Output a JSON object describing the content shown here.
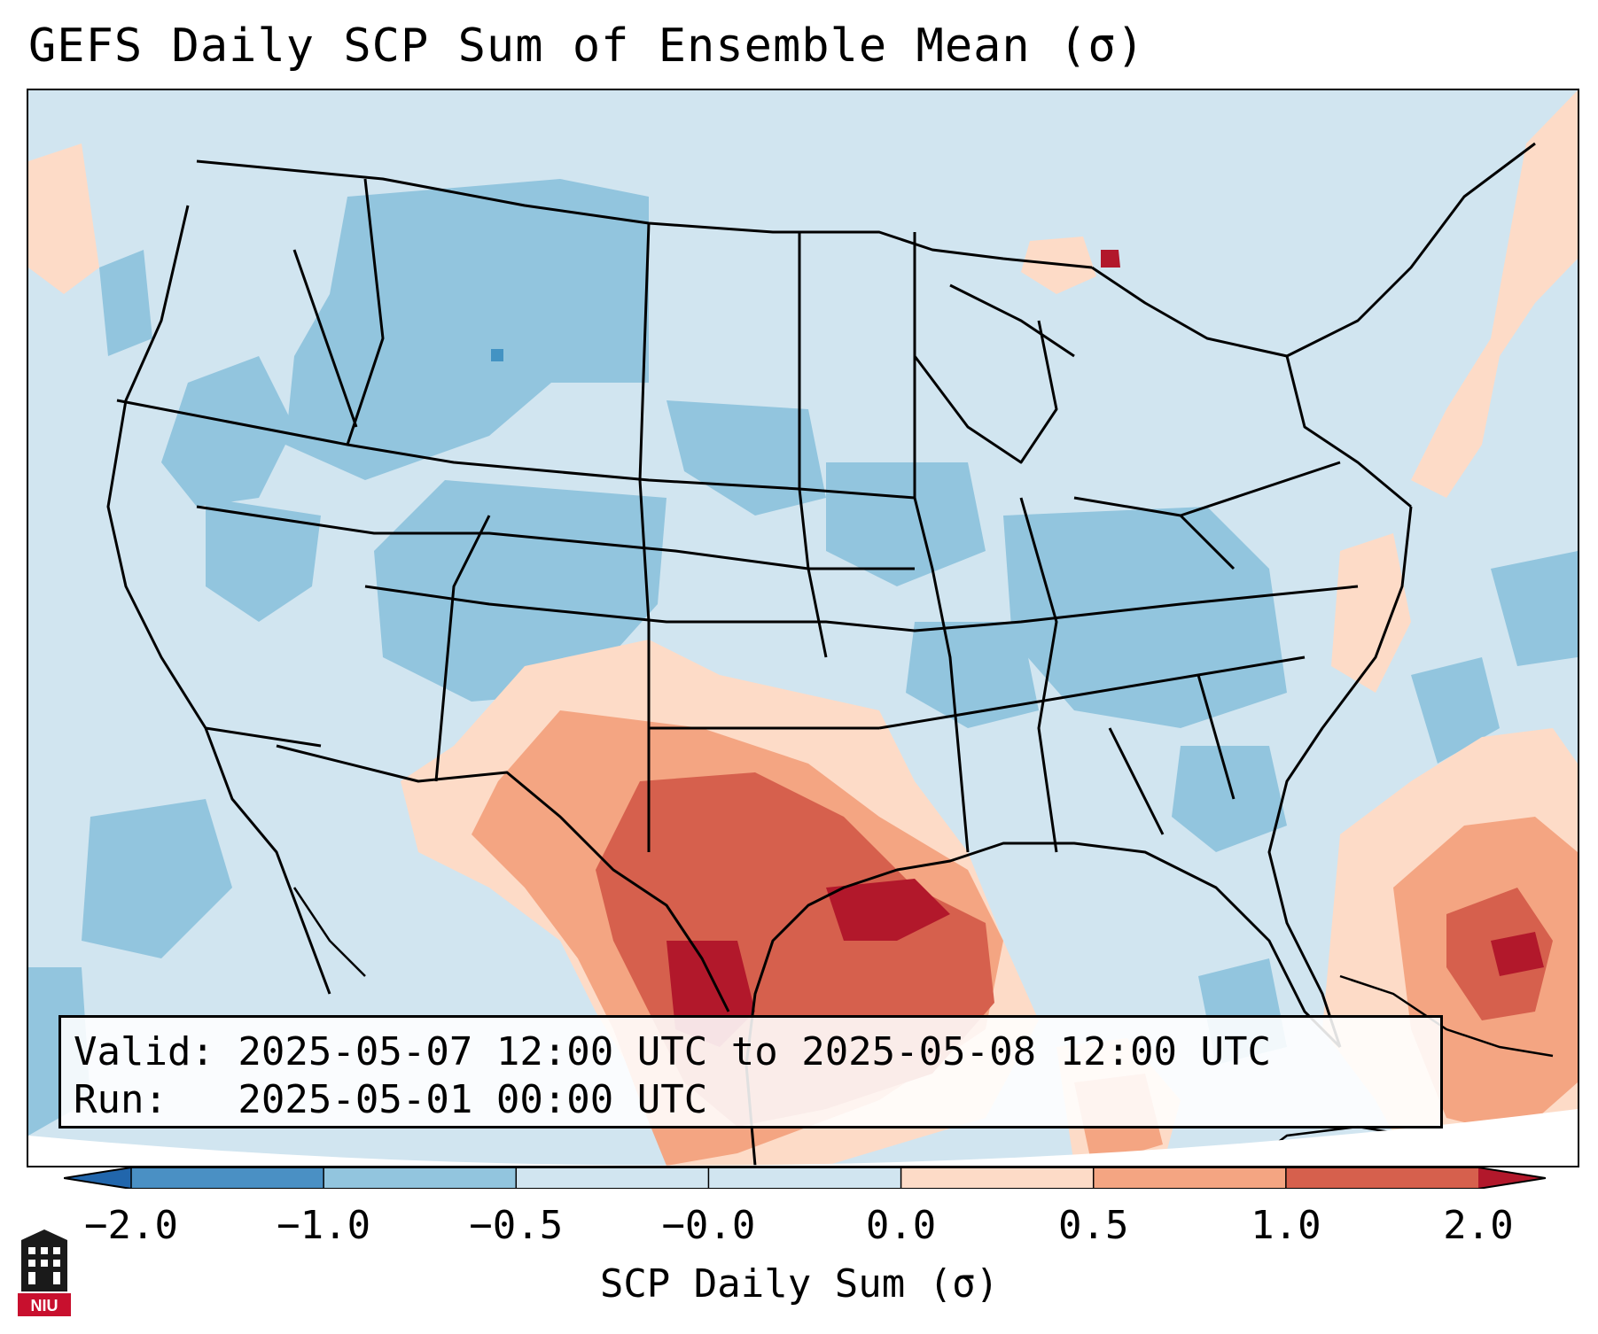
{
  "title": "GEFS Daily SCP Sum of Ensemble Mean (σ)",
  "info": {
    "valid_line": "Valid: 2025-05-07 12:00 UTC to 2025-05-08 12:00 UTC",
    "run_line": "Run:   2025-05-01 00:00 UTC"
  },
  "colorbar": {
    "label": "SCP Daily Sum (σ)",
    "ticks": [
      "−2.0",
      "−1.0",
      "−0.5",
      "−0.0",
      "0.0",
      "0.5",
      "1.0",
      "2.0"
    ],
    "colors": [
      "#4a90c4",
      "#92c5de",
      "#d1e5f0",
      "#d1e5f0",
      "#fddbc7",
      "#f4a582",
      "#d6604d",
      "#b2182b"
    ],
    "extend_low_color": "#2166ac",
    "extend_high_color": "#b2182b"
  },
  "map": {
    "background_color": "#cfe3ef",
    "region": "Contiguous United States"
  },
  "logo": {
    "text": "NIU"
  }
}
